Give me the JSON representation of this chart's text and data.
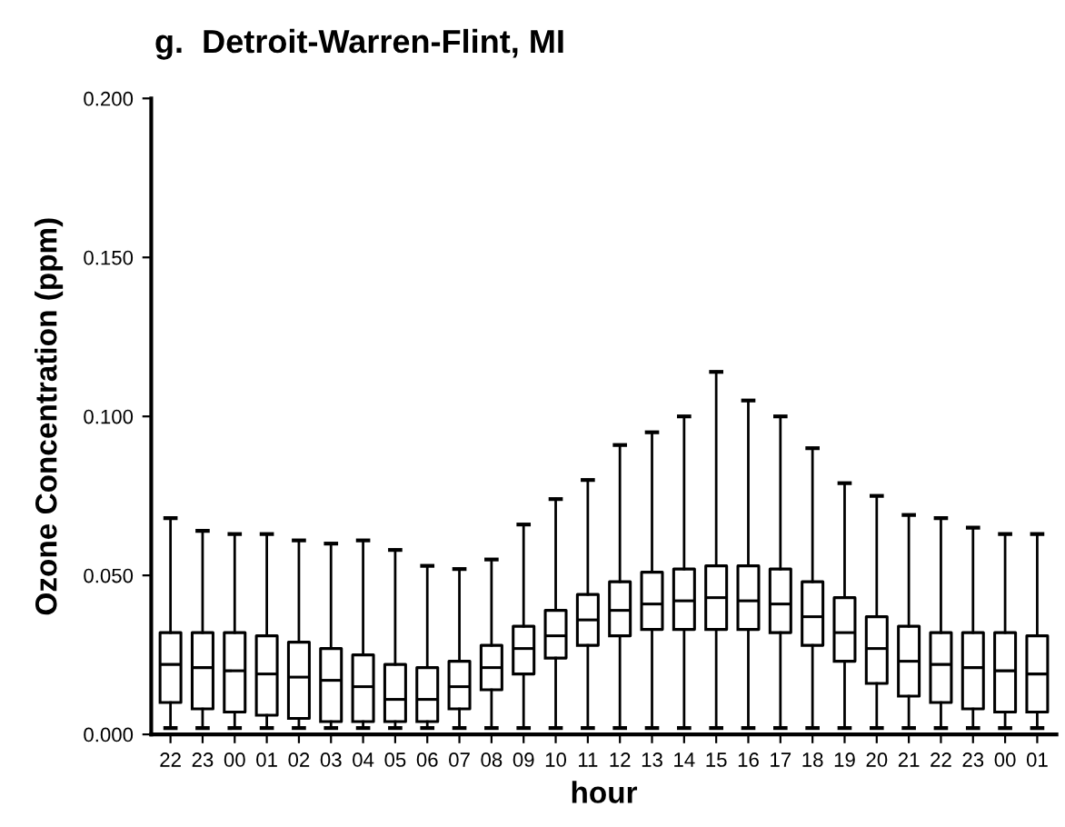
{
  "chart_data": {
    "type": "box",
    "title": "g.  Detroit-Warren-Flint, MI",
    "xlabel": "hour",
    "ylabel": "Ozone Concentration (ppm)",
    "categories": [
      "22",
      "23",
      "00",
      "01",
      "02",
      "03",
      "04",
      "05",
      "06",
      "07",
      "08",
      "09",
      "10",
      "11",
      "12",
      "13",
      "14",
      "15",
      "16",
      "17",
      "18",
      "19",
      "20",
      "21",
      "22",
      "23",
      "00",
      "01"
    ],
    "ylim": [
      0,
      0.2
    ],
    "yticks": [
      {
        "value": 0,
        "label": "0.000"
      },
      {
        "value": 0.05,
        "label": "0.050"
      },
      {
        "value": 0.1,
        "label": "0.100"
      },
      {
        "value": 0.15,
        "label": "0.150"
      },
      {
        "value": 0.2,
        "label": "0.200"
      }
    ],
    "grid": false,
    "boxes": [
      {
        "low": 0.002,
        "q1": 0.01,
        "median": 0.022,
        "q3": 0.032,
        "high": 0.068
      },
      {
        "low": 0.002,
        "q1": 0.008,
        "median": 0.021,
        "q3": 0.032,
        "high": 0.064
      },
      {
        "low": 0.002,
        "q1": 0.007,
        "median": 0.02,
        "q3": 0.032,
        "high": 0.063
      },
      {
        "low": 0.002,
        "q1": 0.006,
        "median": 0.019,
        "q3": 0.031,
        "high": 0.063
      },
      {
        "low": 0.002,
        "q1": 0.005,
        "median": 0.018,
        "q3": 0.029,
        "high": 0.061
      },
      {
        "low": 0.002,
        "q1": 0.004,
        "median": 0.017,
        "q3": 0.027,
        "high": 0.06
      },
      {
        "low": 0.002,
        "q1": 0.004,
        "median": 0.015,
        "q3": 0.025,
        "high": 0.061
      },
      {
        "low": 0.002,
        "q1": 0.004,
        "median": 0.011,
        "q3": 0.022,
        "high": 0.058
      },
      {
        "low": 0.002,
        "q1": 0.004,
        "median": 0.011,
        "q3": 0.021,
        "high": 0.053
      },
      {
        "low": 0.002,
        "q1": 0.008,
        "median": 0.015,
        "q3": 0.023,
        "high": 0.052
      },
      {
        "low": 0.002,
        "q1": 0.014,
        "median": 0.021,
        "q3": 0.028,
        "high": 0.055
      },
      {
        "low": 0.002,
        "q1": 0.019,
        "median": 0.027,
        "q3": 0.034,
        "high": 0.066
      },
      {
        "low": 0.002,
        "q1": 0.024,
        "median": 0.031,
        "q3": 0.039,
        "high": 0.074
      },
      {
        "low": 0.002,
        "q1": 0.028,
        "median": 0.036,
        "q3": 0.044,
        "high": 0.08
      },
      {
        "low": 0.002,
        "q1": 0.031,
        "median": 0.039,
        "q3": 0.048,
        "high": 0.091
      },
      {
        "low": 0.002,
        "q1": 0.033,
        "median": 0.041,
        "q3": 0.051,
        "high": 0.095
      },
      {
        "low": 0.002,
        "q1": 0.033,
        "median": 0.042,
        "q3": 0.052,
        "high": 0.1
      },
      {
        "low": 0.002,
        "q1": 0.033,
        "median": 0.043,
        "q3": 0.053,
        "high": 0.114
      },
      {
        "low": 0.002,
        "q1": 0.033,
        "median": 0.042,
        "q3": 0.053,
        "high": 0.105
      },
      {
        "low": 0.002,
        "q1": 0.032,
        "median": 0.041,
        "q3": 0.052,
        "high": 0.1
      },
      {
        "low": 0.002,
        "q1": 0.028,
        "median": 0.037,
        "q3": 0.048,
        "high": 0.09
      },
      {
        "low": 0.002,
        "q1": 0.023,
        "median": 0.032,
        "q3": 0.043,
        "high": 0.079
      },
      {
        "low": 0.002,
        "q1": 0.016,
        "median": 0.027,
        "q3": 0.037,
        "high": 0.075
      },
      {
        "low": 0.002,
        "q1": 0.012,
        "median": 0.023,
        "q3": 0.034,
        "high": 0.069
      },
      {
        "low": 0.002,
        "q1": 0.01,
        "median": 0.022,
        "q3": 0.032,
        "high": 0.068
      },
      {
        "low": 0.002,
        "q1": 0.008,
        "median": 0.021,
        "q3": 0.032,
        "high": 0.065
      },
      {
        "low": 0.002,
        "q1": 0.007,
        "median": 0.02,
        "q3": 0.032,
        "high": 0.063
      },
      {
        "low": 0.002,
        "q1": 0.007,
        "median": 0.019,
        "q3": 0.031,
        "high": 0.063
      }
    ]
  }
}
